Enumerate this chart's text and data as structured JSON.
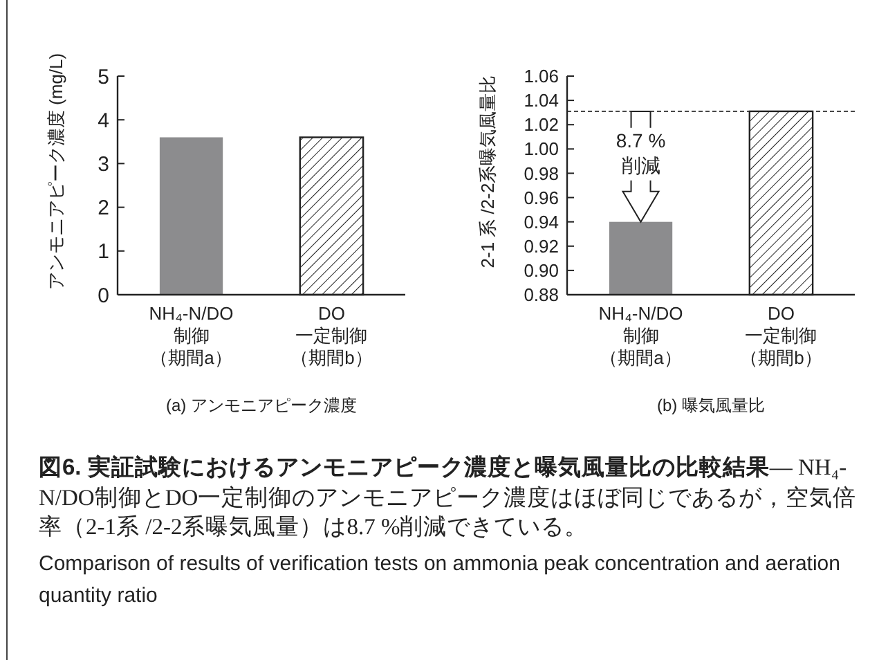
{
  "chart_data": [
    {
      "type": "bar",
      "categories": [
        "NH₄-N/DO制御（期間a）",
        "DO一定制御（期間b）"
      ],
      "values": [
        3.6,
        3.6
      ],
      "colors": [
        "#8c8c8e",
        "#222222"
      ],
      "ylim": [
        0,
        5
      ],
      "yticks": [
        0,
        1,
        2,
        3,
        4,
        5
      ],
      "ylabel": "アンモニアピーク濃度 (mg/L)",
      "xlabel": "(a) アンモニアピーク濃度",
      "grid": false
    },
    {
      "type": "bar",
      "categories": [
        "NH₄-N/DO制御（期間a）",
        "DO一定制御（期間b）"
      ],
      "values": [
        0.94,
        1.031
      ],
      "colors": [
        "#8c8c8e",
        "#222222"
      ],
      "ylim": [
        0.88,
        1.06
      ],
      "yticks": [
        {
          "value": 0.88,
          "label": "0.88"
        },
        {
          "value": 0.9,
          "label": "0.90"
        },
        {
          "value": 0.92,
          "label": "0.92"
        },
        {
          "value": 0.94,
          "label": "0.94"
        },
        {
          "value": 0.96,
          "label": "0.96"
        },
        {
          "value": 0.98,
          "label": "0.98"
        },
        {
          "value": 1,
          "label": "1.00"
        },
        {
          "value": 1.02,
          "label": "1.02"
        },
        {
          "value": 1.04,
          "label": "1.04"
        },
        {
          "value": 1.06,
          "label": "1.06"
        }
      ],
      "ylabel": "2-1 系 /2-2系曝気風量比",
      "xlabel": "(b) 曝気風量比",
      "grid": false,
      "ref_lines": [
        {
          "axis": "y",
          "value": 1.031,
          "line_style": "dashed"
        }
      ],
      "annotations": [
        {
          "text": "8.7 %\n削減",
          "x": "NH₄-N/DO制御（期間a）",
          "y": 0.94
        },
        "図6.  実証試験におけるアンモニアピーク濃度と曝気風量比の比較結果",
        "— NH₄-N/DO制御とDO一定制御のアンモニアピーク濃度はほぼ同じであるが，空気倍率（2-1系 /2-2系曝気風量）は8.7 %削減できている。",
        "Comparison of results of verification tests on ammonia peak concentration and aeration quantity ratio"
      ]
    }
  ]
}
